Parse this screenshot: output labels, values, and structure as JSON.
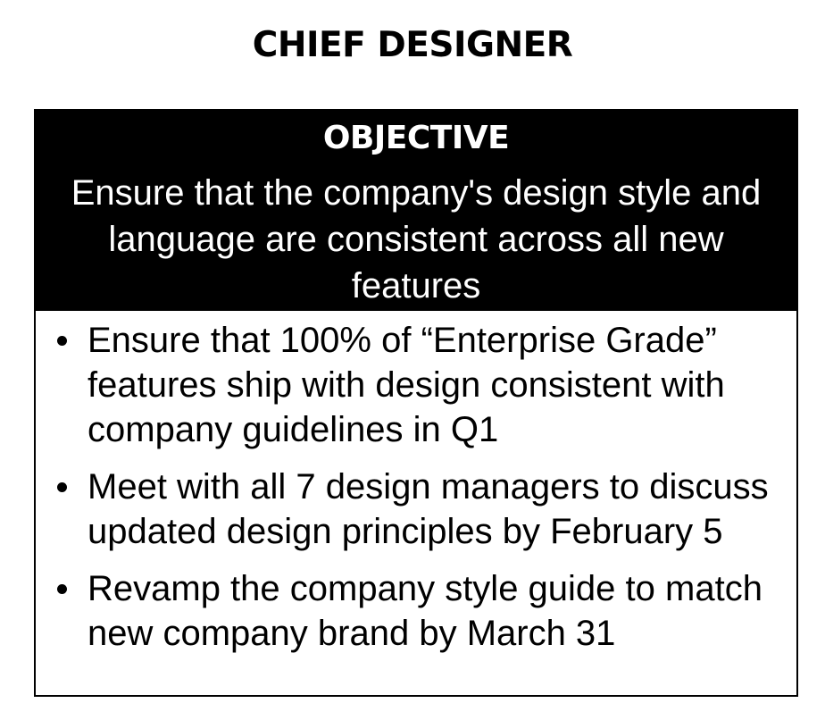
{
  "title": "CHIEF DESIGNER",
  "objective": {
    "label": "OBJECTIVE",
    "text": "Ensure that the company's design style and language are consistent across all new features"
  },
  "key_results": [
    "Ensure that 100% of “Enterprise Grade” features ship with design consistent with company guidelines in Q1",
    "Meet with all 7 design managers to discuss updated design principles by February 5",
    "Revamp the company style guide to match new company brand by March 31"
  ]
}
